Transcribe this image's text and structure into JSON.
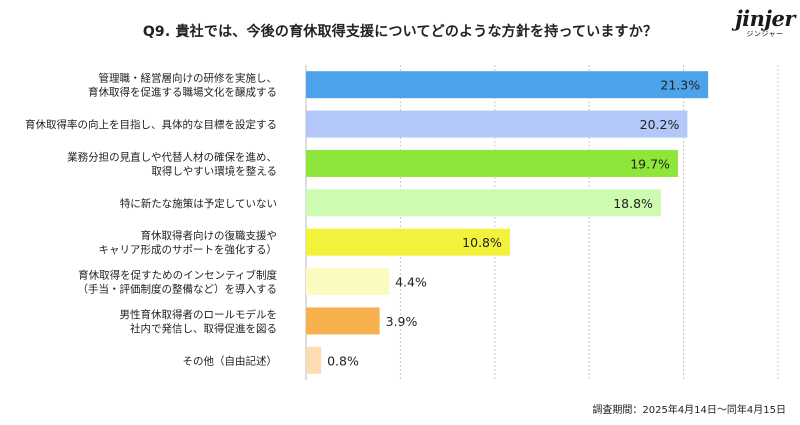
{
  "header": {
    "title": "Q9. 貴社では、今後の育休取得支援についてどのような方針を持っていますか？"
  },
  "logo": {
    "word": "jinjer",
    "kana": "ジンジャー"
  },
  "footnote": "調査期間：2025年4月14日〜同年4月15日",
  "chart_data": {
    "type": "bar",
    "orientation": "horizontal",
    "title": "Q9. 貴社では、今後の育休取得支援についてどのような方針を持っていますか？",
    "categories": [
      "管理職・経営層向けの研修を実施し、\n育休取得を促進する職場文化を醸成する",
      "育休取得率の向上を目指し、具体的な目標を設定する",
      "業務分担の見直しや代替人材の確保を進め、\n取得しやすい環境を整える",
      "特に新たな施策は予定していない",
      "育休取得者向けの復職支援や\nキャリア形成のサポートを強化する）",
      "育休取得を促すためのインセンティブ制度\n（手当・評価制度の整備など）を導入する",
      "男性育休取得者のロールモデルを\n社内で発信し、取得促進を図る",
      "その他（自由記述）"
    ],
    "values": [
      21.3,
      20.2,
      19.7,
      18.8,
      10.8,
      4.4,
      3.9,
      0.8
    ],
    "value_labels": [
      "21.3%",
      "20.2%",
      "19.7%",
      "18.8%",
      "10.8%",
      "4.4%",
      "3.9%",
      "0.8%"
    ],
    "colors": [
      "#4da3ea",
      "#b3c8f8",
      "#8fe63b",
      "#cdfbb0",
      "#f2f23c",
      "#fbfbbf",
      "#f7b04e",
      "#fddcb2"
    ],
    "xlim": [
      0,
      25
    ],
    "grid": true,
    "xlabel": "",
    "ylabel": ""
  }
}
